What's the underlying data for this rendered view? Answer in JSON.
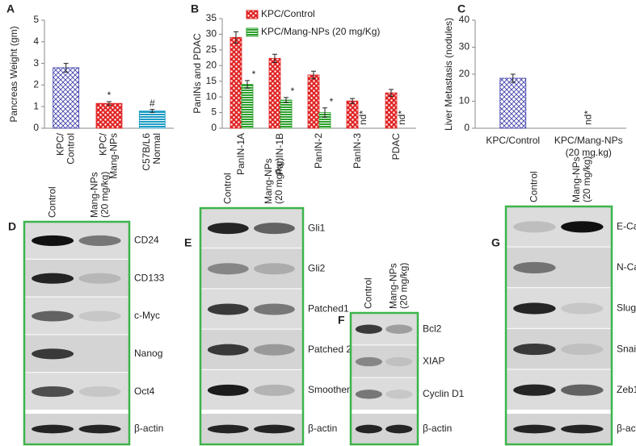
{
  "chart_data": [
    {
      "type": "bar",
      "panel": "A",
      "ylabel": "Pancreas Weight (gm)",
      "categories": [
        [
          "KPC/",
          "Control"
        ],
        [
          "KPC/",
          "Mang-NPs"
        ],
        [
          "C57B/L6",
          "Normal"
        ]
      ],
      "values": [
        2.8,
        1.15,
        0.8
      ],
      "errors": [
        0.2,
        0.08,
        0.07
      ],
      "annotations": [
        null,
        "*",
        "#"
      ],
      "colors": [
        "#3a3aa8",
        "#e02424",
        "#1e9cc4"
      ],
      "patterns": [
        "crosshatch",
        "checker",
        "hstripe"
      ],
      "ylim": [
        0,
        5
      ],
      "yticks": [
        0,
        1,
        2,
        3,
        4,
        5
      ]
    },
    {
      "type": "bar",
      "panel": "B",
      "ylabel": "PanINs and PDAC",
      "categories": [
        [
          "PanIN-1A"
        ],
        [
          "PanIN-1B"
        ],
        [
          "PanIN-2"
        ],
        [
          "PanIN-3"
        ],
        [
          "PDAC"
        ]
      ],
      "series": [
        {
          "name": "KPC/Control",
          "color": "#e02424",
          "pattern": "checker",
          "values": [
            29,
            22.3,
            17,
            8.7,
            11.3
          ],
          "errors": [
            1.8,
            1.3,
            1.2,
            0.8,
            1.1
          ]
        },
        {
          "name": "KPC/Mang-NPs (20 mg/Kg)",
          "color": "#2ca02c",
          "pattern": "hstripe",
          "values": [
            14,
            9,
            5,
            null,
            null
          ],
          "errors": [
            1.2,
            0.8,
            1.5,
            null,
            null
          ],
          "annotations": [
            "*",
            "*",
            "*",
            "nd*",
            "nd*"
          ]
        }
      ],
      "legend": "top",
      "ylim": [
        0,
        35
      ],
      "yticks": [
        0,
        5,
        10,
        15,
        20,
        25,
        30,
        35
      ]
    },
    {
      "type": "bar",
      "panel": "C",
      "ylabel": "Liver Metastasis (nodules)",
      "categories": [
        [
          "KPC/Control"
        ],
        [
          "KPC/Mang-NPs",
          "(20 mg.kg)"
        ]
      ],
      "values": [
        18.5,
        null
      ],
      "errors": [
        1.5,
        null
      ],
      "annotations": [
        null,
        "nd*"
      ],
      "color": "#3a3aa8",
      "pattern": "crosshatch",
      "ylim": [
        0,
        40
      ],
      "yticks": [
        0,
        10,
        20,
        30,
        40
      ]
    }
  ],
  "blots": [
    {
      "panel": "D",
      "lanes": [
        [
          "Control"
        ],
        [
          "Mang-NPs",
          "(20 mg/kg)"
        ]
      ],
      "proteins": [
        "CD24",
        "CD133",
        "c-Myc",
        "Nanog",
        "Oct4",
        "β-actin"
      ]
    },
    {
      "panel": "E",
      "lanes": [
        [
          "Control"
        ],
        [
          "Mang-NPs",
          "(20 mg/kg)"
        ]
      ],
      "proteins": [
        "Gli1",
        "Gli2",
        "Patched1",
        "Patched 2",
        "Smoothened",
        "β-actin"
      ]
    },
    {
      "panel": "F",
      "lanes": [
        [
          "Control"
        ],
        [
          "Mang-NPs",
          "(20 mg/kg)"
        ]
      ],
      "proteins": [
        "Bcl2",
        "XIAP",
        "Cyclin D1",
        "β-actin"
      ]
    },
    {
      "panel": "G",
      "lanes": [
        [
          "Control"
        ],
        [
          "Mang-NPs",
          "(20 mg/kg)"
        ]
      ],
      "proteins": [
        "E-Cad",
        "N-Cad",
        "Slug",
        "Snail",
        "Zeb1",
        "β-actin"
      ]
    }
  ]
}
